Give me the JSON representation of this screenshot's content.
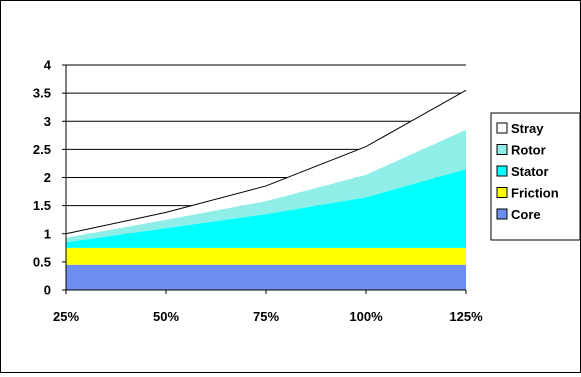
{
  "chart_data": {
    "type": "area",
    "stacked": true,
    "title": "",
    "xlabel": "",
    "ylabel": "",
    "categories": [
      "25%",
      "50%",
      "75%",
      "100%",
      "125%"
    ],
    "ylim": [
      0,
      4
    ],
    "yticks": [
      "0",
      "0.5",
      "1",
      "1.5",
      "2",
      "2.5",
      "3",
      "3.5",
      "4"
    ],
    "grid": true,
    "legend_position": "right",
    "series": [
      {
        "name": "Core",
        "color": "#6f8ff0",
        "values": [
          0.45,
          0.45,
          0.45,
          0.45,
          0.45
        ]
      },
      {
        "name": "Friction",
        "color": "#ffff00",
        "values": [
          0.3,
          0.3,
          0.3,
          0.3,
          0.3
        ]
      },
      {
        "name": "Stator",
        "color": "#00ffff",
        "values": [
          0.1,
          0.35,
          0.6,
          0.9,
          1.4
        ]
      },
      {
        "name": "Rotor",
        "color": "#8fefe8",
        "values": [
          0.08,
          0.15,
          0.23,
          0.4,
          0.7
        ]
      },
      {
        "name": "Stray",
        "color": "#ffffff",
        "values": [
          0.07,
          0.13,
          0.27,
          0.5,
          0.7
        ]
      }
    ]
  }
}
